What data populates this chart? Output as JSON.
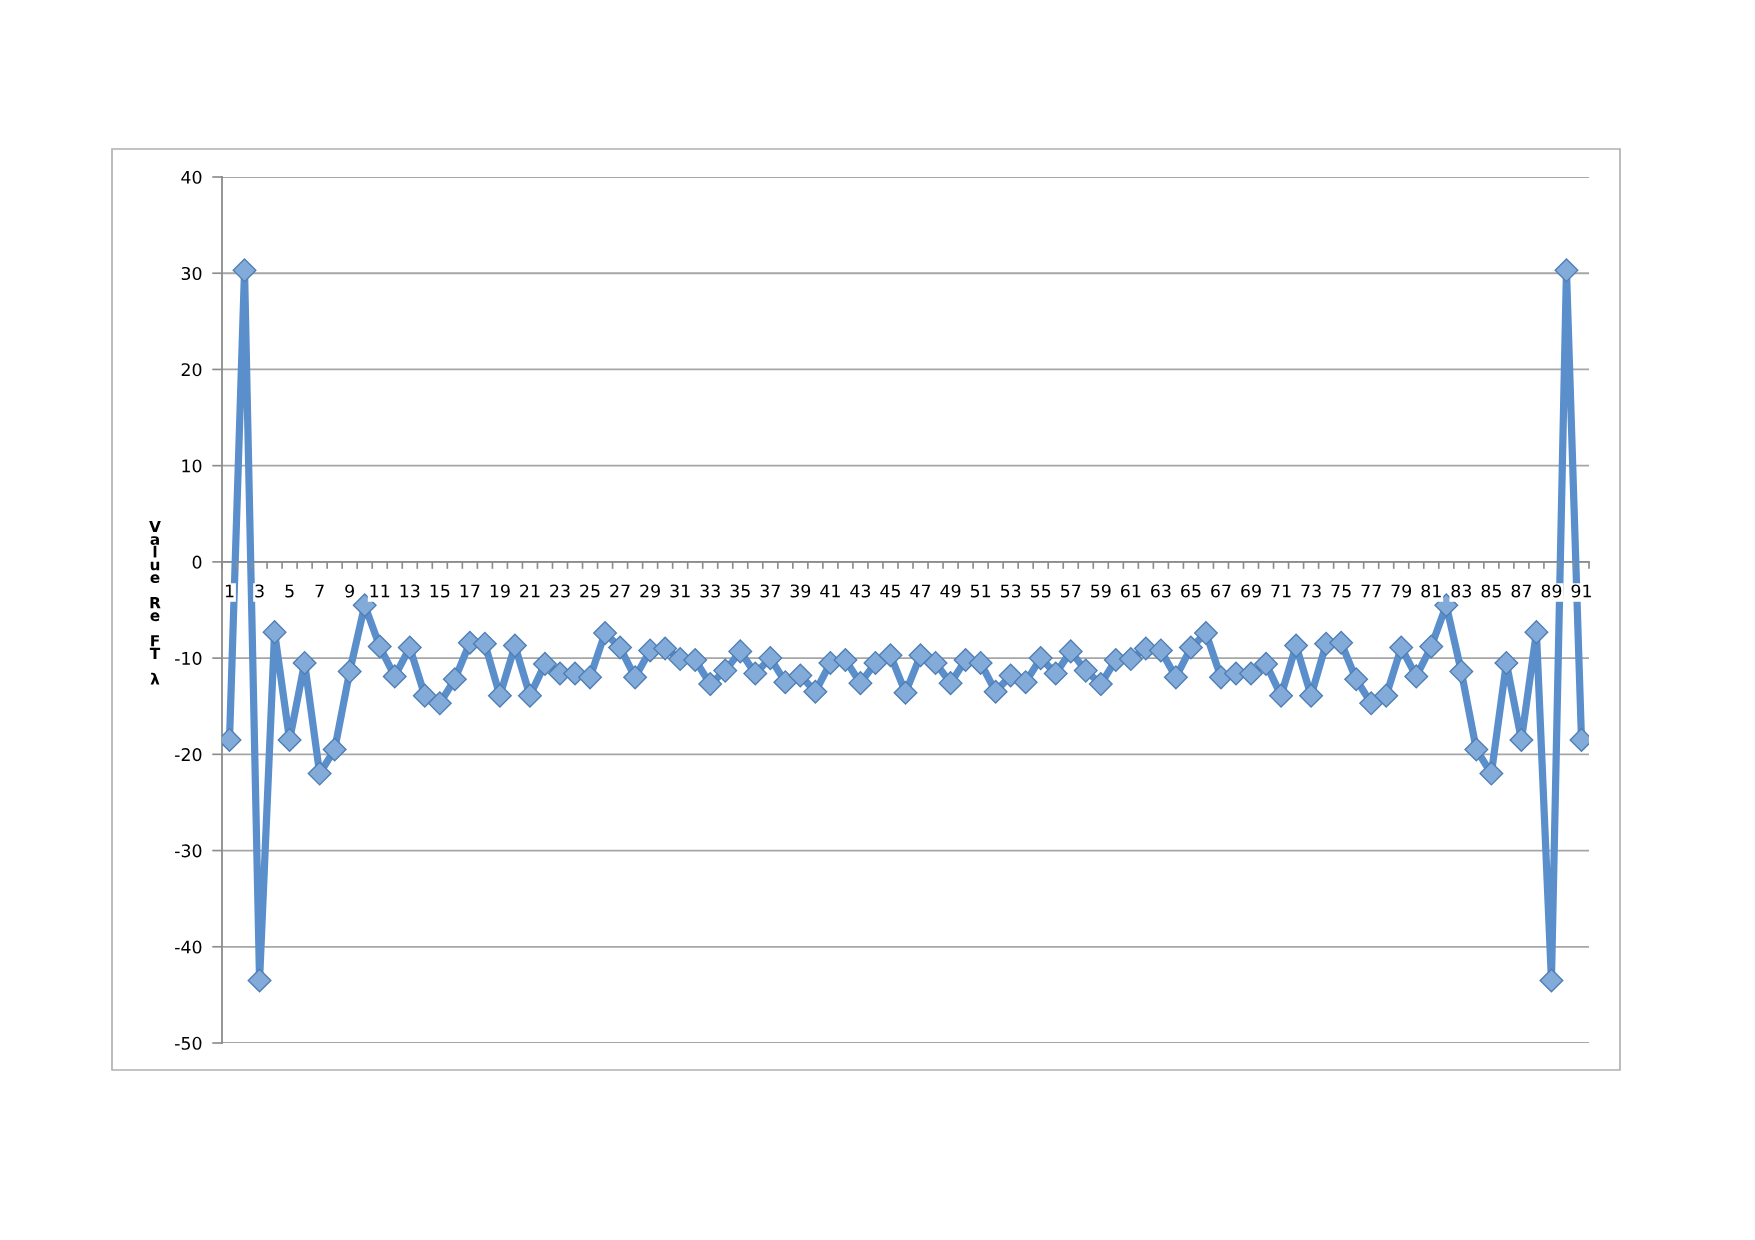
{
  "chart_data": {
    "type": "line",
    "ylabel": "Value Re FT λ",
    "categories": [
      "1",
      null,
      "3",
      null,
      "5",
      null,
      "7",
      null,
      "9",
      null,
      "11",
      null,
      "13",
      null,
      "15",
      null,
      "17",
      null,
      "19",
      null,
      "21",
      null,
      "23",
      null,
      "25",
      null,
      "27",
      null,
      "29",
      null,
      "31",
      null,
      "33",
      null,
      "35",
      null,
      "37",
      null,
      "39",
      null,
      "41",
      null,
      "43",
      null,
      "45",
      null,
      "47",
      null,
      "49",
      null,
      "51",
      null,
      "53",
      null,
      "55",
      null,
      "57",
      null,
      "59",
      null,
      "61",
      null,
      "63",
      null,
      "65",
      null,
      "67",
      null,
      "69",
      null,
      "71",
      null,
      "73",
      null,
      "75",
      null,
      "77",
      null,
      "79",
      null,
      "81",
      null,
      "83",
      null,
      "85",
      null,
      "87",
      null,
      "89",
      null,
      "91"
    ],
    "series": [
      {
        "color": "#5a8fcc",
        "values": [
          -18.5,
          30.3,
          -43.5,
          -7.3,
          -18.5,
          -10.5,
          -22.0,
          -19.5,
          -11.4,
          -4.5,
          -8.8,
          -11.9,
          -8.9,
          -13.9,
          -14.7,
          -12.2,
          -8.4,
          -8.5,
          -13.9,
          -8.7,
          -13.9,
          -10.6,
          -11.6,
          -11.6,
          -12.0,
          -7.4,
          -8.9,
          -12.0,
          -9.2,
          -9.0,
          -10.1,
          -10.2,
          -12.7,
          -11.3,
          -9.3,
          -11.6,
          -10.0,
          -12.5,
          -11.8,
          -13.5,
          -10.5,
          -10.2,
          -12.6,
          -10.5,
          -9.7,
          -13.6,
          -9.7,
          -10.5,
          -12.6,
          -10.2,
          -10.5,
          -13.5,
          -11.8,
          -12.5,
          -10.0,
          -11.6,
          -9.3,
          -11.3,
          -12.7,
          -10.2,
          -10.1,
          -9.0,
          -9.2,
          -12.0,
          -8.9,
          -7.4,
          -12.0,
          -11.6,
          -11.6,
          -10.6,
          -13.9,
          -8.7,
          -13.9,
          -8.5,
          -8.4,
          -12.2,
          -14.7,
          -13.9,
          -8.9,
          -11.9,
          -8.8,
          -4.5,
          -11.4,
          -19.5,
          -22.0,
          -10.5,
          -18.5,
          -7.3,
          -43.5,
          30.3,
          -18.5
        ]
      }
    ],
    "ylim": [
      -50,
      40
    ],
    "yticks": [
      -50,
      -40,
      -30,
      -20,
      -10,
      0,
      10,
      20,
      30,
      40
    ],
    "grid": "y",
    "marker": "diamond",
    "line_style": "solid"
  }
}
